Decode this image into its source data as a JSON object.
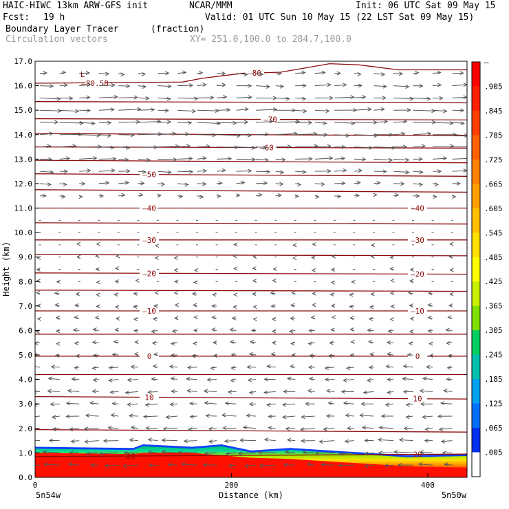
{
  "header": {
    "model": "HAIC-HIWC 13km ARW-GFS init",
    "org": "NCAR/MMM",
    "init": "Init: 06 UTC Sat 09 May 15",
    "fcst_label": "Fcst:",
    "fcst_value": "19 h",
    "valid": "Valid: 01 UTC Sun 10 May 15 (22 LST Sat 09 May 15)",
    "field_name": "Boundary Layer Tracer",
    "field_units": "(fraction)",
    "vector_label": "Circulation vectors",
    "xy_range": "XY= 251.0,100.0 to 284.7,100.0"
  },
  "chart_data": {
    "type": "heatmap",
    "xlabel": "Distance (km)",
    "ylabel": "Height (km)",
    "xlim": [
      0,
      440
    ],
    "ylim": [
      0,
      17
    ],
    "x_ticks": [
      0,
      200,
      400
    ],
    "y_ticks": [
      "0.0",
      "1.0",
      "2.0",
      "3.0",
      "4.0",
      "5.0",
      "6.0",
      "7.0",
      "8.0",
      "9.0",
      "10.0",
      "11.0",
      "12.0",
      "13.0",
      "14.0",
      "15.0",
      "16.0",
      "17.0"
    ],
    "x_endpoint_labels": [
      "5n54w",
      "5n50w"
    ],
    "colorbar": {
      "labels": [
        "–",
        ".905",
        ".845",
        ".785",
        ".725",
        ".665",
        ".605",
        ".545",
        ".485",
        ".425",
        ".365",
        ".305",
        ".245",
        ".185",
        ".125",
        ".065",
        ".005"
      ],
      "colors": [
        "#ff0000",
        "#ff2000",
        "#ff4000",
        "#ff6000",
        "#ff8000",
        "#ffa000",
        "#ffc000",
        "#ffe000",
        "#ffff00",
        "#c8f000",
        "#80e000",
        "#00d060",
        "#00c0b0",
        "#00a0f0",
        "#0070ff",
        "#0030f0",
        "#ffffff"
      ]
    },
    "tracer_layer": {
      "top_x_km": [
        0,
        100,
        110,
        160,
        190,
        220,
        260,
        300,
        340,
        380,
        440
      ],
      "top_height_km": [
        1.25,
        1.2,
        1.35,
        1.25,
        1.35,
        1.1,
        1.2,
        1.1,
        1.0,
        0.9,
        0.95
      ],
      "high_tracer_top_km": [
        1.0,
        0.95,
        1.0,
        1.0,
        0.9,
        0.8,
        0.75,
        0.65,
        0.55,
        0.45,
        0.4
      ]
    },
    "isotherms_C": [
      {
        "label": "–80",
        "x_km": [
          0,
          150,
          170,
          210,
          250,
          300,
          330,
          370,
          440
        ],
        "height_km": [
          16.1,
          16.15,
          16.3,
          16.5,
          16.55,
          16.9,
          16.85,
          16.65,
          16.65
        ]
      },
      {
        "label": "–80.58",
        "x_km": [
          40
        ],
        "height_km": [
          16.1
        ]
      },
      {
        "label": "",
        "x_km": [
          0,
          440
        ],
        "height_km": [
          15.35,
          15.3
        ]
      },
      {
        "label": "–70",
        "x_km": [
          0,
          440
        ],
        "height_km": [
          14.65,
          14.6
        ]
      },
      {
        "label": "",
        "x_km": [
          0,
          440
        ],
        "height_km": [
          14.05,
          13.95
        ]
      },
      {
        "label": "–60",
        "x_km": [
          0,
          440
        ],
        "height_km": [
          13.5,
          13.45
        ]
      },
      {
        "label": "",
        "x_km": [
          0,
          440
        ],
        "height_km": [
          12.95,
          12.85
        ]
      },
      {
        "label": "–50",
        "x_km": [
          0,
          440
        ],
        "height_km": [
          12.4,
          12.3
        ]
      },
      {
        "label": "",
        "x_km": [
          0,
          440
        ],
        "height_km": [
          11.75,
          11.65
        ]
      },
      {
        "label": "–40",
        "x_km": [
          0,
          440
        ],
        "height_km": [
          11.0,
          11.0
        ]
      },
      {
        "label": "",
        "x_km": [
          0,
          440
        ],
        "height_km": [
          10.4,
          10.35
        ]
      },
      {
        "label": "–30",
        "x_km": [
          0,
          440
        ],
        "height_km": [
          9.7,
          9.7
        ]
      },
      {
        "label": "",
        "x_km": [
          0,
          440
        ],
        "height_km": [
          9.1,
          9.05
        ]
      },
      {
        "label": "–20",
        "x_km": [
          0,
          440
        ],
        "height_km": [
          8.35,
          8.3
        ]
      },
      {
        "label": "",
        "x_km": [
          0,
          440
        ],
        "height_km": [
          7.65,
          7.6
        ]
      },
      {
        "label": "–10",
        "x_km": [
          0,
          440
        ],
        "height_km": [
          6.8,
          6.8
        ]
      },
      {
        "label": "",
        "x_km": [
          0,
          440
        ],
        "height_km": [
          5.85,
          5.85
        ]
      },
      {
        "label": "0",
        "x_km": [
          0,
          440
        ],
        "height_km": [
          4.95,
          4.95
        ]
      },
      {
        "label": "",
        "x_km": [
          0,
          440
        ],
        "height_km": [
          4.2,
          4.2
        ]
      },
      {
        "label": "10",
        "x_km": [
          0,
          440
        ],
        "height_km": [
          3.3,
          3.2
        ]
      },
      {
        "label": "",
        "x_km": [
          0,
          440
        ],
        "height_km": [
          1.95,
          1.85
        ]
      },
      {
        "label": "20",
        "x_km": [
          0,
          440
        ],
        "height_km": [
          0.85,
          0.95
        ]
      }
    ],
    "contour_labels_right": [
      "–40",
      "–30",
      "–20",
      "–10",
      "0",
      "10",
      "20"
    ],
    "low_marker": "L",
    "wind": {
      "columns_x_km": [
        5,
        25,
        45,
        65,
        85,
        105,
        125,
        145,
        165,
        185,
        205,
        225,
        245,
        265,
        285,
        305,
        325,
        345,
        365,
        385,
        405,
        425
      ],
      "levels_km": [
        0.5,
        1.0,
        1.5,
        2.0,
        2.5,
        3.0,
        3.5,
        4.0,
        4.5,
        5.0,
        5.5,
        6.0,
        6.5,
        7.0,
        7.5,
        8.0,
        8.5,
        9.0,
        9.5,
        10.0,
        10.5,
        11.0,
        11.5,
        12.0,
        12.5,
        13.0,
        13.5,
        14.0,
        14.5,
        15.0,
        15.5,
        16.0,
        16.5
      ],
      "u_rel": [
        -1.0,
        -1.2,
        -1.0,
        -0.9,
        -0.9,
        -0.8,
        -0.8,
        -0.7,
        -0.6,
        -0.4,
        -0.4,
        -0.4,
        -0.3,
        -0.3,
        -0.3,
        -0.2,
        -0.2,
        -0.2,
        -0.15,
        -0.1,
        -0.05,
        0.05,
        0.4,
        0.7,
        1.0,
        1.2,
        1.4,
        1.5,
        1.5,
        1.4,
        1.3,
        1.0,
        0.7
      ]
    }
  }
}
